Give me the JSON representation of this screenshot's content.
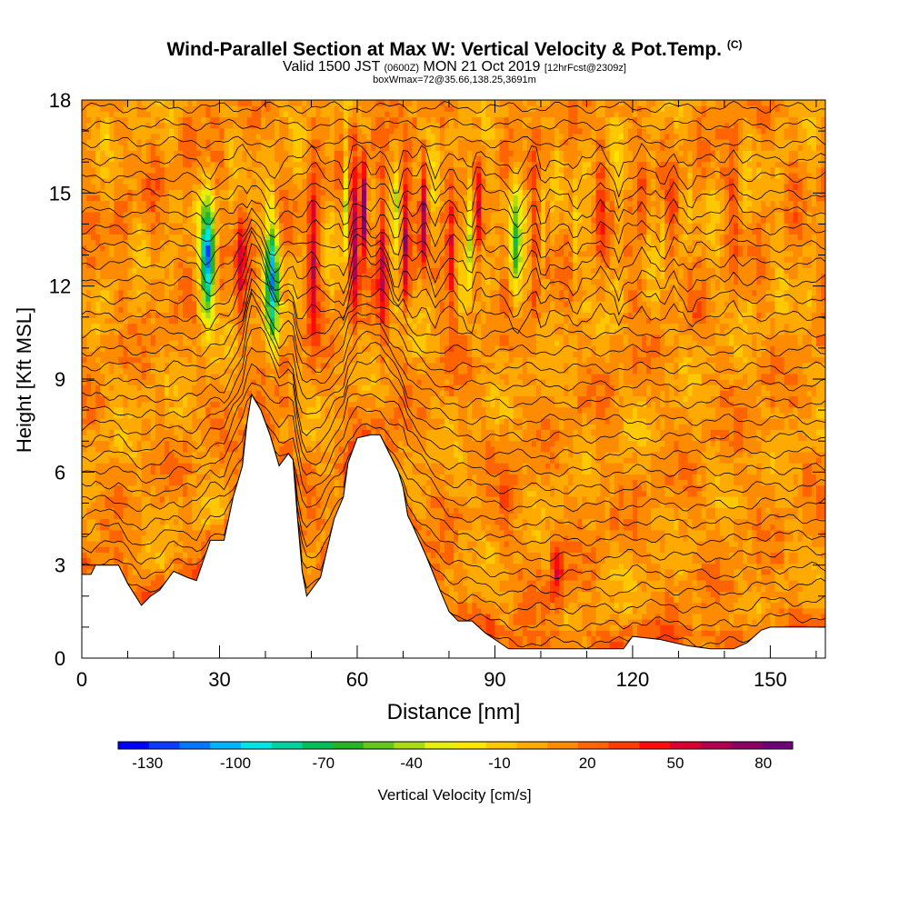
{
  "title": {
    "main": "Wind-Parallel Section at Max W: Vertical Velocity & Pot.Temp.",
    "copyright": "(C)",
    "valid_prefix": "Valid 1500 JST",
    "valid_utc": "(0600Z)",
    "valid_date": "MON 21 Oct 2019",
    "forecast": "[12hrFcst@2309z]",
    "box": "boxWmax=72@35.66,138.25,3691m"
  },
  "chart_data": {
    "type": "heatmap",
    "xlabel": "Distance [nm]",
    "ylabel": "Height [Kft MSL]",
    "xlim": [
      0,
      162
    ],
    "ylim": [
      0,
      18
    ],
    "x_ticks": [
      0,
      30,
      60,
      90,
      120,
      150
    ],
    "y_ticks": [
      0,
      3,
      6,
      9,
      12,
      15,
      18
    ],
    "colorbar": {
      "label": "Vertical Velocity [cm/s]",
      "min": -140,
      "max": 90,
      "tick_values": [
        -130,
        -100,
        -70,
        -40,
        -10,
        20,
        50,
        80
      ],
      "colors": [
        "#0000ff",
        "#0a3cff",
        "#0078ff",
        "#00b4ff",
        "#00e6e6",
        "#00d2a0",
        "#00be5a",
        "#28b428",
        "#64c81e",
        "#aadc14",
        "#e6f00a",
        "#ffe600",
        "#ffc800",
        "#ffaa00",
        "#ff8c00",
        "#ff6400",
        "#ff3c00",
        "#ff0a0a",
        "#dc0032",
        "#b40050",
        "#8c0064",
        "#6e0078"
      ]
    },
    "terrain": [
      [
        0,
        2.7
      ],
      [
        2,
        2.7
      ],
      [
        3,
        3.0
      ],
      [
        8,
        3.0
      ],
      [
        10,
        2.4
      ],
      [
        13,
        1.7
      ],
      [
        15,
        2.0
      ],
      [
        17,
        2.2
      ],
      [
        20,
        2.8
      ],
      [
        23,
        2.6
      ],
      [
        25,
        2.5
      ],
      [
        28,
        3.8
      ],
      [
        31,
        3.8
      ],
      [
        33,
        5.2
      ],
      [
        35,
        6.2
      ],
      [
        36,
        7.6
      ],
      [
        37,
        8.5
      ],
      [
        39,
        8.0
      ],
      [
        41,
        7.2
      ],
      [
        43,
        6.2
      ],
      [
        45,
        6.6
      ],
      [
        46,
        6.4
      ],
      [
        47,
        4.5
      ],
      [
        48,
        2.8
      ],
      [
        49,
        2.0
      ],
      [
        51,
        2.4
      ],
      [
        52,
        2.6
      ],
      [
        55,
        4.5
      ],
      [
        57,
        5.2
      ],
      [
        58,
        6.3
      ],
      [
        60,
        7.1
      ],
      [
        63,
        7.2
      ],
      [
        65,
        7.2
      ],
      [
        67,
        6.6
      ],
      [
        69,
        6.0
      ],
      [
        70,
        5.5
      ],
      [
        71,
        4.6
      ],
      [
        72,
        4.3
      ],
      [
        75,
        3.3
      ],
      [
        78,
        2.2
      ],
      [
        80,
        1.5
      ],
      [
        82,
        1.2
      ],
      [
        85,
        1.2
      ],
      [
        88,
        0.8
      ],
      [
        90,
        0.6
      ],
      [
        93,
        0.3
      ],
      [
        118,
        0.3
      ],
      [
        120,
        0.7
      ],
      [
        126,
        0.6
      ],
      [
        132,
        0.4
      ],
      [
        137,
        0.3
      ],
      [
        142,
        0.3
      ],
      [
        145,
        0.5
      ],
      [
        148,
        0.9
      ],
      [
        150,
        1.0
      ],
      [
        155,
        1.0
      ],
      [
        162,
        1.0
      ]
    ],
    "updrafts": [
      [
        34.5,
        12.8,
        1.1,
        2.2,
        35
      ],
      [
        50.5,
        13.0,
        1.2,
        2.6,
        45
      ],
      [
        59.5,
        13.6,
        1.0,
        2.8,
        55
      ],
      [
        61.5,
        14.5,
        0.7,
        1.6,
        80
      ],
      [
        65.5,
        13.0,
        1.0,
        2.5,
        45
      ],
      [
        70.5,
        13.5,
        0.7,
        2.2,
        50
      ],
      [
        74.5,
        14.5,
        0.8,
        2.0,
        60
      ],
      [
        80.5,
        13.0,
        0.9,
        2.3,
        40
      ],
      [
        86.5,
        14.5,
        0.6,
        1.5,
        30
      ],
      [
        98.5,
        13.5,
        0.7,
        2.5,
        20
      ],
      [
        103.5,
        2.7,
        1.4,
        1.1,
        35
      ],
      [
        113,
        14.5,
        0.9,
        2.0,
        20
      ],
      [
        122,
        14.5,
        0.9,
        2.2,
        20
      ],
      [
        129,
        14.5,
        0.7,
        1.5,
        20
      ],
      [
        142,
        15.0,
        1.0,
        2.0,
        15
      ],
      [
        92.5,
        5.0,
        1.5,
        1.5,
        15
      ]
    ],
    "downdrafts": [
      [
        27.5,
        12.9,
        1.5,
        1.9,
        -120
      ],
      [
        41.5,
        12.2,
        1.4,
        2.1,
        -110
      ],
      [
        57.5,
        14.8,
        0.7,
        1.9,
        -55
      ],
      [
        68.5,
        14.6,
        0.7,
        1.4,
        -35
      ],
      [
        77,
        15.0,
        0.8,
        1.4,
        -25
      ],
      [
        84.5,
        14.0,
        0.8,
        1.8,
        -50
      ],
      [
        94.5,
        13.5,
        1.2,
        1.9,
        -65
      ],
      [
        100.5,
        14.0,
        0.6,
        2.0,
        -25
      ],
      [
        107.5,
        13.5,
        0.6,
        2.0,
        -20
      ],
      [
        117,
        14.5,
        0.6,
        1.5,
        -15
      ],
      [
        126.5,
        14.0,
        0.5,
        1.5,
        -15
      ],
      [
        132.5,
        14.5,
        0.5,
        1.2,
        -12
      ]
    ]
  }
}
